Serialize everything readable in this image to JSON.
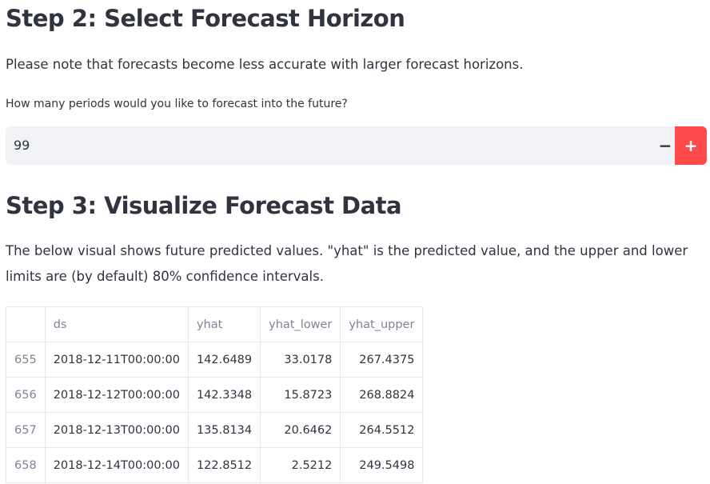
{
  "step2": {
    "title": "Step 2: Select Forecast Horizon",
    "note": "Please note that forecasts become less accurate with larger forecast horizons.",
    "input_label": "How many periods would you like to forecast into the future?",
    "input_value": 99,
    "minus": "−",
    "plus": "+"
  },
  "step3": {
    "title": "Step 3: Visualize Forecast Data",
    "description": "The below visual shows future predicted values. \"yhat\" is the predicted value, and the upper and lower limits are (by default) 80% confidence intervals."
  },
  "table": {
    "columns": [
      "ds",
      "yhat",
      "yhat_lower",
      "yhat_upper"
    ],
    "rows": [
      [
        655,
        "2018-12-11T00:00:00",
        142.6489,
        33.0178,
        267.4375
      ],
      [
        656,
        "2018-12-12T00:00:00",
        142.3348,
        15.8723,
        268.8824
      ],
      [
        657,
        "2018-12-13T00:00:00",
        135.8134,
        20.6462,
        264.5512
      ],
      [
        658,
        "2018-12-14T00:00:00",
        122.8512,
        2.5212,
        249.5498
      ]
    ]
  }
}
